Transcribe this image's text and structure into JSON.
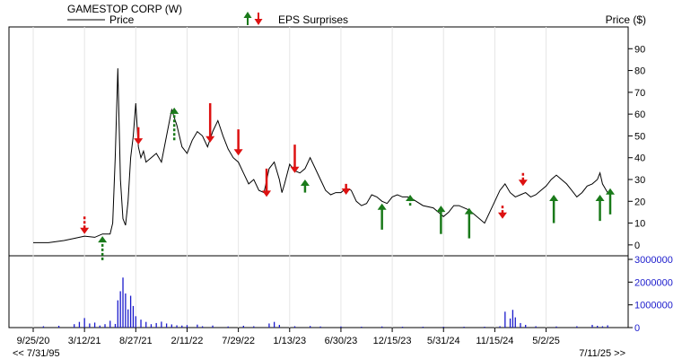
{
  "header": {
    "company": "GAMESTOP CORP (W)",
    "price_legend": "Price",
    "eps_legend": "EPS Surprises",
    "price_axis_label": "Price ($)"
  },
  "footer": {
    "range_start": "<< 7/31/95",
    "range_end": "7/11/25 >>"
  },
  "colors": {
    "line": "#000000",
    "beat": "#1a7a1a",
    "miss": "#dd1111",
    "volume": "#1a1acc",
    "border": "#000000"
  },
  "chart_data": {
    "type": "line",
    "x_ticks": [
      "9/25/20",
      "3/12/21",
      "8/27/21",
      "2/11/22",
      "7/29/22",
      "1/13/23",
      "6/30/23",
      "12/15/23",
      "5/31/24",
      "11/15/24",
      "5/2/25"
    ],
    "price_ticks": [
      0,
      10,
      20,
      30,
      40,
      50,
      60,
      70,
      80,
      90
    ],
    "price_range": [
      -5,
      100
    ],
    "volume_ticks": [
      0,
      1000000,
      2000000,
      3000000
    ],
    "volume_tick_labels": [
      "0",
      "1000000",
      "2000000",
      "3000000"
    ],
    "volume_range": [
      0,
      3000000
    ],
    "x_range": [
      0,
      11.25
    ],
    "price_series": {
      "name": "Price",
      "points": [
        [
          0.0,
          1.0
        ],
        [
          0.3,
          1.0
        ],
        [
          0.6,
          2.0
        ],
        [
          0.8,
          3.0
        ],
        [
          1.0,
          4.0
        ],
        [
          1.2,
          3.5
        ],
        [
          1.35,
          5.0
        ],
        [
          1.5,
          5.0
        ],
        [
          1.55,
          10
        ],
        [
          1.6,
          40
        ],
        [
          1.65,
          81
        ],
        [
          1.7,
          30
        ],
        [
          1.75,
          12
        ],
        [
          1.8,
          9
        ],
        [
          1.85,
          20
        ],
        [
          1.9,
          40
        ],
        [
          1.95,
          50
        ],
        [
          2.0,
          65
        ],
        [
          2.05,
          45
        ],
        [
          2.1,
          40
        ],
        [
          2.15,
          43
        ],
        [
          2.2,
          38
        ],
        [
          2.3,
          40
        ],
        [
          2.4,
          42
        ],
        [
          2.5,
          38
        ],
        [
          2.6,
          50
        ],
        [
          2.7,
          62
        ],
        [
          2.8,
          55
        ],
        [
          2.9,
          45
        ],
        [
          3.0,
          42
        ],
        [
          3.1,
          48
        ],
        [
          3.2,
          52
        ],
        [
          3.3,
          50
        ],
        [
          3.4,
          45
        ],
        [
          3.5,
          52
        ],
        [
          3.6,
          57
        ],
        [
          3.7,
          50
        ],
        [
          3.8,
          44
        ],
        [
          3.9,
          40
        ],
        [
          4.0,
          38
        ],
        [
          4.1,
          33
        ],
        [
          4.2,
          28
        ],
        [
          4.3,
          30
        ],
        [
          4.4,
          25
        ],
        [
          4.5,
          24
        ],
        [
          4.6,
          35
        ],
        [
          4.7,
          38
        ],
        [
          4.8,
          30
        ],
        [
          4.85,
          24
        ],
        [
          4.9,
          28
        ],
        [
          5.0,
          37
        ],
        [
          5.1,
          34
        ],
        [
          5.2,
          33
        ],
        [
          5.3,
          35
        ],
        [
          5.4,
          40
        ],
        [
          5.5,
          35
        ],
        [
          5.6,
          30
        ],
        [
          5.7,
          25
        ],
        [
          5.8,
          23
        ],
        [
          5.9,
          24
        ],
        [
          6.0,
          24
        ],
        [
          6.1,
          26
        ],
        [
          6.2,
          25
        ],
        [
          6.3,
          20
        ],
        [
          6.4,
          18
        ],
        [
          6.5,
          19
        ],
        [
          6.6,
          23
        ],
        [
          6.7,
          22
        ],
        [
          6.8,
          20
        ],
        [
          6.9,
          19
        ],
        [
          7.0,
          22
        ],
        [
          7.1,
          23
        ],
        [
          7.2,
          22
        ],
        [
          7.3,
          22
        ],
        [
          7.4,
          21
        ],
        [
          7.6,
          18
        ],
        [
          7.8,
          17
        ],
        [
          7.9,
          15
        ],
        [
          8.0,
          13
        ],
        [
          8.1,
          15
        ],
        [
          8.2,
          18
        ],
        [
          8.3,
          18
        ],
        [
          8.4,
          17
        ],
        [
          8.5,
          16
        ],
        [
          8.6,
          14
        ],
        [
          8.7,
          12
        ],
        [
          8.8,
          10
        ],
        [
          8.9,
          15
        ],
        [
          9.0,
          20
        ],
        [
          9.1,
          25
        ],
        [
          9.2,
          28
        ],
        [
          9.3,
          24
        ],
        [
          9.4,
          22
        ],
        [
          9.5,
          23
        ],
        [
          9.6,
          24
        ],
        [
          9.7,
          22
        ],
        [
          9.8,
          23
        ],
        [
          9.9,
          25
        ],
        [
          10.0,
          27
        ],
        [
          10.1,
          30
        ],
        [
          10.2,
          32
        ],
        [
          10.3,
          30
        ],
        [
          10.4,
          28
        ],
        [
          10.5,
          25
        ],
        [
          10.6,
          22
        ],
        [
          10.7,
          24
        ],
        [
          10.8,
          27
        ],
        [
          10.9,
          28
        ],
        [
          11.0,
          30
        ],
        [
          11.05,
          33
        ],
        [
          11.1,
          28
        ],
        [
          11.2,
          24
        ],
        [
          11.25,
          23
        ]
      ]
    },
    "eps_surprises": [
      {
        "x": 1.0,
        "type": "miss",
        "style": "dotted",
        "base": 5,
        "length": 8
      },
      {
        "x": 1.35,
        "type": "beat",
        "style": "dotted",
        "base": -7,
        "length": 11
      },
      {
        "x": 2.05,
        "type": "miss",
        "style": "solid",
        "base": 46,
        "length": 8
      },
      {
        "x": 2.75,
        "type": "beat",
        "style": "dotted",
        "base": 48,
        "length": 15
      },
      {
        "x": 3.45,
        "type": "miss",
        "style": "solid",
        "base": 47,
        "length": 18
      },
      {
        "x": 4.0,
        "type": "miss",
        "style": "solid",
        "base": 41,
        "length": 12
      },
      {
        "x": 4.55,
        "type": "miss",
        "style": "solid",
        "base": 22,
        "length": 13
      },
      {
        "x": 5.1,
        "type": "miss",
        "style": "solid",
        "base": 33,
        "length": 13
      },
      {
        "x": 5.3,
        "type": "beat",
        "style": "solid",
        "base": 24,
        "length": 6
      },
      {
        "x": 6.1,
        "type": "miss",
        "style": "solid",
        "base": 23,
        "length": 5
      },
      {
        "x": 6.8,
        "type": "beat",
        "style": "solid",
        "base": 7,
        "length": 12
      },
      {
        "x": 7.35,
        "type": "beat",
        "style": "dotted",
        "base": 18,
        "length": 5
      },
      {
        "x": 7.95,
        "type": "beat",
        "style": "solid",
        "base": 5,
        "length": 13
      },
      {
        "x": 8.5,
        "type": "beat",
        "style": "solid",
        "base": 3,
        "length": 14
      },
      {
        "x": 9.15,
        "type": "miss",
        "style": "dotted",
        "base": 12,
        "length": 6
      },
      {
        "x": 9.55,
        "type": "miss",
        "style": "dotted",
        "base": 27,
        "length": 6
      },
      {
        "x": 10.15,
        "type": "beat",
        "style": "solid",
        "base": 10,
        "length": 13
      },
      {
        "x": 11.05,
        "type": "beat",
        "style": "solid",
        "base": 11,
        "length": 12
      },
      {
        "x": 11.25,
        "type": "beat",
        "style": "solid",
        "base": 14,
        "length": 12
      }
    ],
    "volume_series": {
      "points": [
        [
          0.2,
          60000
        ],
        [
          0.5,
          80000
        ],
        [
          0.8,
          150000
        ],
        [
          0.9,
          250000
        ],
        [
          1.0,
          420000
        ],
        [
          1.1,
          180000
        ],
        [
          1.2,
          220000
        ],
        [
          1.3,
          90000
        ],
        [
          1.4,
          150000
        ],
        [
          1.5,
          300000
        ],
        [
          1.6,
          160000
        ],
        [
          1.65,
          1200000
        ],
        [
          1.7,
          1600000
        ],
        [
          1.75,
          2200000
        ],
        [
          1.8,
          1500000
        ],
        [
          1.85,
          800000
        ],
        [
          1.9,
          1400000
        ],
        [
          1.95,
          950000
        ],
        [
          2.0,
          500000
        ],
        [
          2.1,
          350000
        ],
        [
          2.2,
          250000
        ],
        [
          2.3,
          150000
        ],
        [
          2.4,
          200000
        ],
        [
          2.5,
          260000
        ],
        [
          2.6,
          180000
        ],
        [
          2.7,
          140000
        ],
        [
          2.8,
          100000
        ],
        [
          2.9,
          90000
        ],
        [
          3.0,
          110000
        ],
        [
          3.2,
          130000
        ],
        [
          3.3,
          60000
        ],
        [
          3.5,
          90000
        ],
        [
          3.8,
          50000
        ],
        [
          4.1,
          80000
        ],
        [
          4.3,
          60000
        ],
        [
          4.6,
          180000
        ],
        [
          4.7,
          250000
        ],
        [
          4.8,
          120000
        ],
        [
          5.1,
          60000
        ],
        [
          5.4,
          70000
        ],
        [
          5.6,
          50000
        ],
        [
          6.0,
          50000
        ],
        [
          6.4,
          40000
        ],
        [
          6.8,
          50000
        ],
        [
          7.2,
          40000
        ],
        [
          7.6,
          40000
        ],
        [
          8.0,
          40000
        ],
        [
          8.4,
          40000
        ],
        [
          8.8,
          40000
        ],
        [
          9.1,
          60000
        ],
        [
          9.2,
          700000
        ],
        [
          9.3,
          400000
        ],
        [
          9.35,
          780000
        ],
        [
          9.4,
          450000
        ],
        [
          9.5,
          200000
        ],
        [
          9.6,
          120000
        ],
        [
          9.8,
          60000
        ],
        [
          10.2,
          50000
        ],
        [
          10.6,
          60000
        ],
        [
          10.9,
          120000
        ],
        [
          11.0,
          80000
        ],
        [
          11.1,
          60000
        ],
        [
          11.2,
          100000
        ]
      ]
    }
  }
}
